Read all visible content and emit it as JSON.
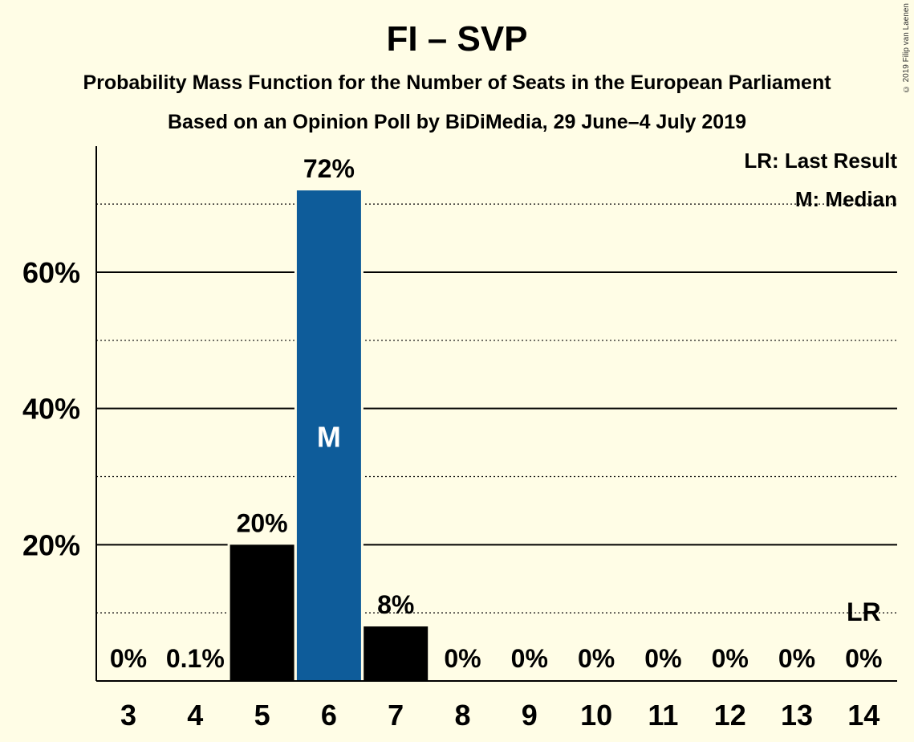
{
  "title": "FI – SVP",
  "subtitle1": "Probability Mass Function for the Number of Seats in the European Parliament",
  "subtitle2": "Based on an Opinion Poll by BiDiMedia, 29 June–4 July 2019",
  "copyright": "© 2019 Filip van Laenen",
  "legend": {
    "last_result": "LR: Last Result",
    "median": "M: Median"
  },
  "colors": {
    "background": "#fffde6",
    "bar": "#000000",
    "median_bar": "#0e5c9a"
  },
  "chart_data": {
    "type": "bar",
    "categories": [
      "3",
      "4",
      "5",
      "6",
      "7",
      "8",
      "9",
      "10",
      "11",
      "12",
      "13",
      "14"
    ],
    "values": [
      0,
      0.1,
      20,
      72,
      8,
      0,
      0,
      0,
      0,
      0,
      0,
      0
    ],
    "value_labels": [
      "0%",
      "0.1%",
      "20%",
      "72%",
      "8%",
      "0%",
      "0%",
      "0%",
      "0%",
      "0%",
      "0%",
      "0%"
    ],
    "ylim": [
      0,
      78.5
    ],
    "yticks": [
      20,
      40,
      60
    ],
    "ytick_labels": [
      "20%",
      "40%",
      "60%"
    ],
    "dotted_gridlines": [
      10,
      30,
      50,
      70
    ],
    "median_category": "6",
    "median_marker": "M",
    "last_result_category": "14",
    "last_result_value": 10,
    "last_result_marker": "LR"
  }
}
